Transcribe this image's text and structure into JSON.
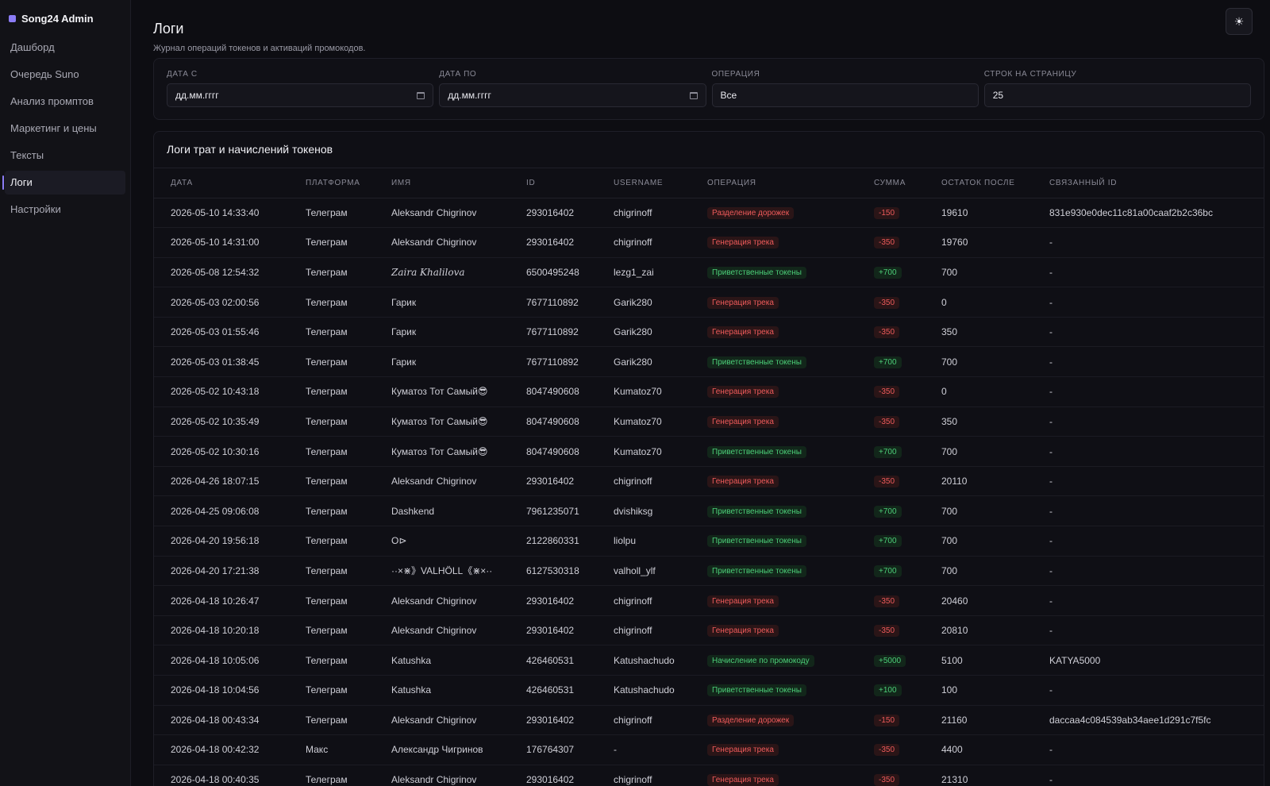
{
  "brand": "Song24 Admin",
  "nav": [
    {
      "label": "Дашборд",
      "key": "dashboard"
    },
    {
      "label": "Очередь Suno",
      "key": "suno-queue"
    },
    {
      "label": "Анализ промптов",
      "key": "prompt-analysis"
    },
    {
      "label": "Маркетинг и цены",
      "key": "marketing"
    },
    {
      "label": "Тексты",
      "key": "texts"
    },
    {
      "label": "Логи",
      "key": "logs",
      "active": true
    },
    {
      "label": "Настройки",
      "key": "settings"
    }
  ],
  "theme_icon": "sun-icon",
  "page": {
    "title": "Логи",
    "subtitle": "Журнал операций токенов и активаций промокодов."
  },
  "filters": {
    "date_from": {
      "label": "Дата с",
      "value": "дд.мм.гггг"
    },
    "date_to": {
      "label": "Дата по",
      "value": "дд.мм.гггг"
    },
    "operation": {
      "label": "Операция",
      "value": "Все"
    },
    "rows": {
      "label": "Строк на страницу",
      "value": "25"
    }
  },
  "table": {
    "title": "Логи трат и начислений токенов",
    "columns": [
      "Дата",
      "Платформа",
      "Имя",
      "ID",
      "Username",
      "Операция",
      "Сумма",
      "Остаток после",
      "Связанный ID"
    ],
    "rows": [
      {
        "date": "2026-05-10 14:33:40",
        "platform": "Телеграм",
        "name": "Aleksandr Chigrinov",
        "id": "293016402",
        "username": "chigrinoff",
        "operation": "Разделение дорожек",
        "op_type": "red",
        "amount": "-150",
        "balance": "19610",
        "related": "831e930e0dec11c81a00caaf2b2c36bc"
      },
      {
        "date": "2026-05-10 14:31:00",
        "platform": "Телеграм",
        "name": "Aleksandr Chigrinov",
        "id": "293016402",
        "username": "chigrinoff",
        "operation": "Генерация трека",
        "op_type": "red",
        "amount": "-350",
        "balance": "19760",
        "related": "-"
      },
      {
        "date": "2026-05-08 12:54:32",
        "platform": "Телеграм",
        "name": "Zaira Khalilova",
        "name_style": "italic",
        "id": "6500495248",
        "username": "lezg1_zai",
        "operation": "Приветственные токены",
        "op_type": "green",
        "amount": "+700",
        "balance": "700",
        "related": "-"
      },
      {
        "date": "2026-05-03 02:00:56",
        "platform": "Телеграм",
        "name": "Гарик",
        "id": "7677110892",
        "username": "Garik280",
        "operation": "Генерация трека",
        "op_type": "red",
        "amount": "-350",
        "balance": "0",
        "related": "-"
      },
      {
        "date": "2026-05-03 01:55:46",
        "platform": "Телеграм",
        "name": "Гарик",
        "id": "7677110892",
        "username": "Garik280",
        "operation": "Генерация трека",
        "op_type": "red",
        "amount": "-350",
        "balance": "350",
        "related": "-"
      },
      {
        "date": "2026-05-03 01:38:45",
        "platform": "Телеграм",
        "name": "Гарик",
        "id": "7677110892",
        "username": "Garik280",
        "operation": "Приветственные токены",
        "op_type": "green",
        "amount": "+700",
        "balance": "700",
        "related": "-"
      },
      {
        "date": "2026-05-02 10:43:18",
        "platform": "Телеграм",
        "name": "Куматоз Тот Самый😎",
        "id": "8047490608",
        "username": "Kumatoz70",
        "operation": "Генерация трека",
        "op_type": "red",
        "amount": "-350",
        "balance": "0",
        "related": "-"
      },
      {
        "date": "2026-05-02 10:35:49",
        "platform": "Телеграм",
        "name": "Куматоз Тот Самый😎",
        "id": "8047490608",
        "username": "Kumatoz70",
        "operation": "Генерация трека",
        "op_type": "red",
        "amount": "-350",
        "balance": "350",
        "related": "-"
      },
      {
        "date": "2026-05-02 10:30:16",
        "platform": "Телеграм",
        "name": "Куматоз Тот Самый😎",
        "id": "8047490608",
        "username": "Kumatoz70",
        "operation": "Приветственные токены",
        "op_type": "green",
        "amount": "+700",
        "balance": "700",
        "related": "-"
      },
      {
        "date": "2026-04-26 18:07:15",
        "platform": "Телеграм",
        "name": "Aleksandr Chigrinov",
        "id": "293016402",
        "username": "chigrinoff",
        "operation": "Генерация трека",
        "op_type": "red",
        "amount": "-350",
        "balance": "20110",
        "related": "-"
      },
      {
        "date": "2026-04-25 09:06:08",
        "platform": "Телеграм",
        "name": "Dashkend",
        "id": "7961235071",
        "username": "dvishiksg",
        "operation": "Приветственные токены",
        "op_type": "green",
        "amount": "+700",
        "balance": "700",
        "related": "-"
      },
      {
        "date": "2026-04-20 19:56:18",
        "platform": "Телеграм",
        "name": "O⊳",
        "id": "2122860331",
        "username": "liolpu",
        "operation": "Приветственные токены",
        "op_type": "green",
        "amount": "+700",
        "balance": "700",
        "related": "-"
      },
      {
        "date": "2026-04-20 17:21:38",
        "platform": "Телеграм",
        "name": "··×⋇》VALHÖLL《⋇×··",
        "id": "6127530318",
        "username": "valholl_ylf",
        "operation": "Приветственные токены",
        "op_type": "green",
        "amount": "+700",
        "balance": "700",
        "related": "-"
      },
      {
        "date": "2026-04-18 10:26:47",
        "platform": "Телеграм",
        "name": "Aleksandr Chigrinov",
        "id": "293016402",
        "username": "chigrinoff",
        "operation": "Генерация трека",
        "op_type": "red",
        "amount": "-350",
        "balance": "20460",
        "related": "-"
      },
      {
        "date": "2026-04-18 10:20:18",
        "platform": "Телеграм",
        "name": "Aleksandr Chigrinov",
        "id": "293016402",
        "username": "chigrinoff",
        "operation": "Генерация трека",
        "op_type": "red",
        "amount": "-350",
        "balance": "20810",
        "related": "-"
      },
      {
        "date": "2026-04-18 10:05:06",
        "platform": "Телеграм",
        "name": "Katushka",
        "id": "426460531",
        "username": "Katushachudo",
        "operation": "Начисление по промокоду",
        "op_type": "green",
        "amount": "+5000",
        "balance": "5100",
        "related": "KATYA5000"
      },
      {
        "date": "2026-04-18 10:04:56",
        "platform": "Телеграм",
        "name": "Katushka",
        "id": "426460531",
        "username": "Katushachudo",
        "operation": "Приветственные токены",
        "op_type": "green",
        "amount": "+100",
        "balance": "100",
        "related": "-"
      },
      {
        "date": "2026-04-18 00:43:34",
        "platform": "Телеграм",
        "name": "Aleksandr Chigrinov",
        "id": "293016402",
        "username": "chigrinoff",
        "operation": "Разделение дорожек",
        "op_type": "red",
        "amount": "-150",
        "balance": "21160",
        "related": "daccaa4c084539ab34aee1d291c7f5fc"
      },
      {
        "date": "2026-04-18 00:42:32",
        "platform": "Макс",
        "name": "Александр Чигринов",
        "id": "176764307",
        "username": "-",
        "operation": "Генерация трека",
        "op_type": "red",
        "amount": "-350",
        "balance": "4400",
        "related": "-"
      },
      {
        "date": "2026-04-18 00:40:35",
        "platform": "Телеграм",
        "name": "Aleksandr Chigrinov",
        "id": "293016402",
        "username": "chigrinoff",
        "operation": "Генерация трека",
        "op_type": "red",
        "amount": "-350",
        "balance": "21310",
        "related": "-"
      }
    ]
  }
}
